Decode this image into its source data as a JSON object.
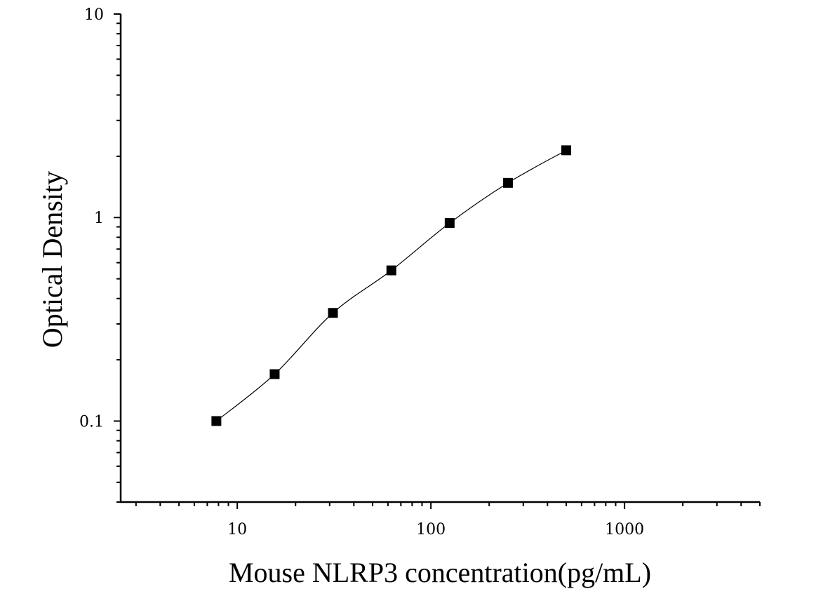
{
  "chart_data": {
    "type": "scatter",
    "xlabel": "Mouse NLRP3 concentration(pg/mL)",
    "ylabel": "Optical Density",
    "x_scale": "log",
    "y_scale": "log",
    "xlim": [
      2.5,
      5000
    ],
    "ylim": [
      0.04,
      10
    ],
    "x_ticks": [
      {
        "value": 10,
        "label": "10"
      },
      {
        "value": 100,
        "label": "100"
      },
      {
        "value": 1000,
        "label": "1000"
      }
    ],
    "y_ticks": [
      {
        "value": 0.1,
        "label": "0.1"
      },
      {
        "value": 1,
        "label": "1"
      },
      {
        "value": 10,
        "label": "10"
      }
    ],
    "grid": false,
    "series": [
      {
        "marker": "square",
        "color": "#000000",
        "fit_line": true,
        "points": [
          {
            "x": 7.8,
            "y": 0.1
          },
          {
            "x": 15.6,
            "y": 0.17
          },
          {
            "x": 31.2,
            "y": 0.34
          },
          {
            "x": 62.5,
            "y": 0.55
          },
          {
            "x": 125,
            "y": 0.94
          },
          {
            "x": 250,
            "y": 1.48
          },
          {
            "x": 500,
            "y": 2.14
          }
        ]
      }
    ]
  }
}
